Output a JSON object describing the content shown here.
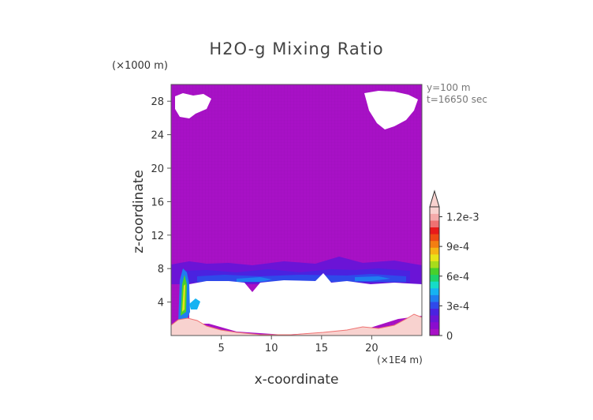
{
  "chart_data": {
    "type": "heatmap",
    "title": "H2O-g Mixing Ratio",
    "xlabel": "x-coordinate",
    "ylabel": "z-coordinate",
    "x_unit": "(×1E4 m)",
    "y_unit": "(×1000 m)",
    "annotations": [
      "y=100 m",
      "t=16650 sec"
    ],
    "xlim": [
      0,
      25
    ],
    "ylim": [
      0,
      30
    ],
    "x_ticks": [
      {
        "value": 5,
        "label": "5"
      },
      {
        "value": 10,
        "label": "10"
      },
      {
        "value": 15,
        "label": "15"
      },
      {
        "value": 20,
        "label": "20"
      }
    ],
    "y_ticks": [
      {
        "value": 4,
        "label": "4"
      },
      {
        "value": 8,
        "label": "8"
      },
      {
        "value": 12,
        "label": "12"
      },
      {
        "value": 16,
        "label": "16"
      },
      {
        "value": 20,
        "label": "20"
      },
      {
        "value": 24,
        "label": "24"
      },
      {
        "value": 28,
        "label": "28"
      }
    ],
    "colorbar": {
      "min": 0,
      "max": 0.0013,
      "extend": "max",
      "colors": [
        "#a811c6",
        "#8a0ccf",
        "#6b14d6",
        "#4a22e0",
        "#2f49ea",
        "#1f7ef0",
        "#16b3f2",
        "#16dcc8",
        "#1ed26a",
        "#48d02c",
        "#a8dc1c",
        "#e8e418",
        "#f6b414",
        "#f47e12",
        "#ee4a14",
        "#e81a1a",
        "#ef7272",
        "#f4aaaa",
        "#f8d2cf"
      ],
      "tick_labels": [
        {
          "value": 0,
          "label": "0"
        },
        {
          "value": 0.0003,
          "label": "3e-4"
        },
        {
          "value": 0.0006,
          "label": "6e-4"
        },
        {
          "value": 0.0009,
          "label": "9e-4"
        },
        {
          "value": 0.0012,
          "label": "1.2e-3"
        }
      ]
    },
    "field_description": {
      "background_value": 2e-05,
      "moist_layer_z": [
        6.5,
        8.5
      ],
      "masked_region_color": "#ffffff",
      "terrain_color": "#f8d2cf"
    }
  }
}
